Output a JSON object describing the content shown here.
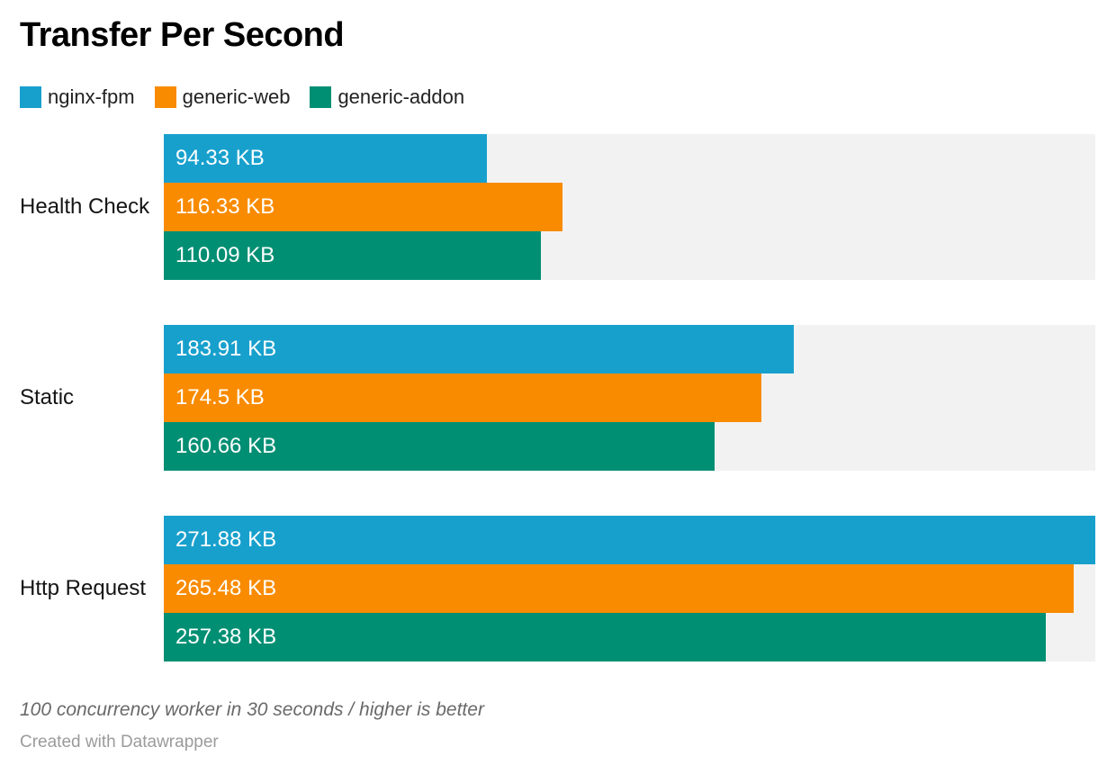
{
  "chart_data": {
    "type": "bar",
    "orientation": "horizontal",
    "title": "Transfer Per Second",
    "unit": "KB",
    "xlim": [
      0,
      271.88
    ],
    "grid": false,
    "legend_position": "top",
    "track_color": "#f2f2f2",
    "categories": [
      "Health Check",
      "Static",
      "Http Request"
    ],
    "series": [
      {
        "name": "nginx-fpm",
        "color": "#18a0cd",
        "values": [
          94.33,
          183.91,
          271.88
        ],
        "labels": [
          "94.33 KB",
          "183.91 KB",
          "271.88 KB"
        ]
      },
      {
        "name": "generic-web",
        "color": "#f98b00",
        "values": [
          116.33,
          174.5,
          265.48
        ],
        "labels": [
          "116.33 KB",
          "174.5 KB",
          "265.48 KB"
        ]
      },
      {
        "name": "generic-addon",
        "color": "#008f73",
        "values": [
          110.09,
          160.66,
          257.38
        ],
        "labels": [
          "110.09 KB",
          "160.66 KB",
          "257.38 KB"
        ]
      }
    ],
    "note": "100 concurrency worker in 30 seconds / higher is better",
    "attribution": "Created with Datawrapper"
  }
}
